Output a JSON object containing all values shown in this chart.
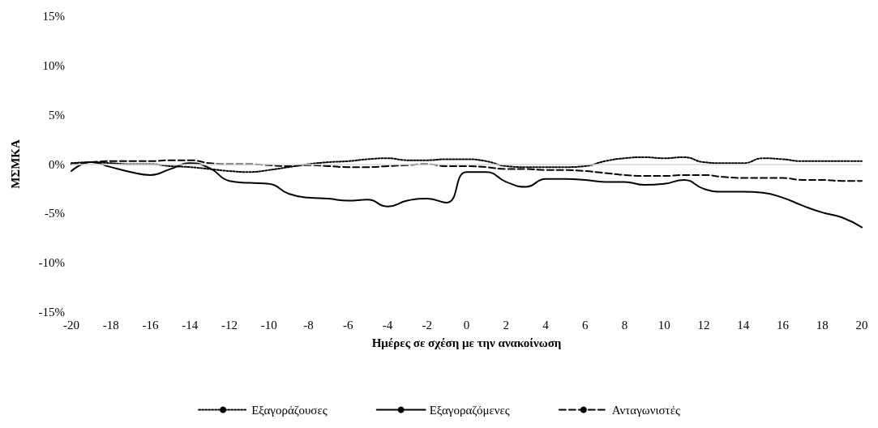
{
  "chart_data": {
    "type": "line",
    "xlabel": "Ημέρες σε σχέση με την ανακοίνωση",
    "ylabel": "ΜΣΜΚΑ",
    "x": [
      -20,
      -19,
      -18,
      -17,
      -16,
      -15,
      -14,
      -13,
      -12,
      -11,
      -10,
      -9,
      -8,
      -7,
      -6,
      -5,
      -4,
      -3,
      -2,
      -1,
      0,
      1,
      2,
      3,
      4,
      5,
      6,
      7,
      8,
      9,
      10,
      11,
      12,
      13,
      14,
      15,
      16,
      17,
      18,
      19,
      20
    ],
    "xlim": [
      -20,
      20
    ],
    "xticks": [
      -20,
      -18,
      -16,
      -14,
      -12,
      -10,
      -8,
      -6,
      -4,
      -2,
      0,
      2,
      4,
      6,
      8,
      10,
      12,
      14,
      16,
      18,
      20
    ],
    "ylim": [
      -15,
      15
    ],
    "yticks": [
      {
        "value": -15,
        "label": "-15%"
      },
      {
        "value": -10,
        "label": "-10%"
      },
      {
        "value": -5,
        "label": "-5%"
      },
      {
        "value": 0,
        "label": "0%"
      },
      {
        "value": 5,
        "label": "5%"
      },
      {
        "value": 10,
        "label": "10%"
      },
      {
        "value": 15,
        "label": "15%"
      }
    ],
    "grid": false,
    "legend": "bottom",
    "marker": "none",
    "ref_lines": [
      {
        "axis": "y",
        "value": 0,
        "color": "#d9d9d9"
      }
    ],
    "series": [
      {
        "name": "Εξαγοράζουσες",
        "color": "#000000",
        "line_style": "dotted",
        "values": [
          0.1,
          0.2,
          0.1,
          0.0,
          0.0,
          -0.2,
          -0.3,
          -0.5,
          -0.7,
          -0.8,
          -0.6,
          -0.3,
          0.0,
          0.2,
          0.3,
          0.5,
          0.6,
          0.4,
          0.4,
          0.5,
          0.5,
          0.3,
          -0.2,
          -0.3,
          -0.3,
          -0.3,
          -0.2,
          0.3,
          0.6,
          0.7,
          0.6,
          0.7,
          0.2,
          0.1,
          0.1,
          0.6,
          0.5,
          0.3,
          0.3,
          0.3,
          0.3
        ]
      },
      {
        "name": "Εξαγοραζόμενες",
        "color": "#000000",
        "line_style": "solid",
        "values": [
          -0.7,
          0.2,
          -0.3,
          -0.8,
          -1.1,
          -0.5,
          0.1,
          -0.4,
          -1.7,
          -1.9,
          -2.0,
          -3.0,
          -3.4,
          -3.5,
          -3.7,
          -3.6,
          -4.3,
          -3.7,
          -3.5,
          -3.9,
          -0.8,
          -0.8,
          -1.8,
          -2.3,
          -1.5,
          -1.5,
          -1.6,
          -1.8,
          -1.8,
          -2.1,
          -2.0,
          -1.6,
          -2.5,
          -2.8,
          -2.8,
          -2.9,
          -3.4,
          -4.2,
          -4.9,
          -5.4,
          -6.4
        ]
      },
      {
        "name": "Ανταγωνιστές",
        "color": "#000000",
        "line_style": "dashed",
        "values": [
          0.0,
          0.2,
          0.3,
          0.3,
          0.3,
          0.4,
          0.4,
          0.1,
          0.0,
          0.0,
          -0.1,
          -0.2,
          -0.1,
          -0.2,
          -0.3,
          -0.3,
          -0.2,
          -0.1,
          0.0,
          -0.2,
          -0.2,
          -0.3,
          -0.5,
          -0.5,
          -0.6,
          -0.6,
          -0.7,
          -0.9,
          -1.1,
          -1.2,
          -1.2,
          -1.1,
          -1.1,
          -1.3,
          -1.4,
          -1.4,
          -1.4,
          -1.6,
          -1.6,
          -1.7,
          -1.7
        ]
      }
    ]
  }
}
